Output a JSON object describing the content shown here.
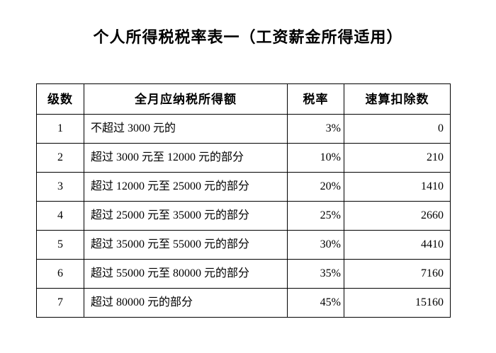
{
  "page": {
    "title": "个人所得税税率表一（工资薪金所得适用）"
  },
  "table": {
    "headers": [
      "级数",
      "全月应纳税所得额",
      "税率",
      "速算扣除数"
    ],
    "rows": [
      [
        "1",
        "不超过 3000 元的",
        "3%",
        "0"
      ],
      [
        "2",
        "超过 3000 元至 12000 元的部分",
        "10%",
        "210"
      ],
      [
        "3",
        "超过 12000 元至 25000 元的部分",
        "20%",
        "1410"
      ],
      [
        "4",
        "超过 25000 元至 35000 元的部分",
        "25%",
        "2660"
      ],
      [
        "5",
        "超过 35000 元至 55000 元的部分",
        "30%",
        "4410"
      ],
      [
        "6",
        "超过 55000 元至 80000 元的部分",
        "35%",
        "7160"
      ],
      [
        "7",
        "超过 80000 元的部分",
        "45%",
        "15160"
      ]
    ]
  },
  "chart_data": {
    "type": "table",
    "title": "个人所得税税率表一（工资薪金所得适用）",
    "columns": [
      "级数",
      "全月应纳税所得额",
      "税率",
      "速算扣除数"
    ],
    "rows": [
      {
        "级数": 1,
        "全月应纳税所得额": "不超过 3000 元的",
        "税率": "3%",
        "速算扣除数": 0
      },
      {
        "级数": 2,
        "全月应纳税所得额": "超过 3000 元至 12000 元的部分",
        "税率": "10%",
        "速算扣除数": 210
      },
      {
        "级数": 3,
        "全月应纳税所得额": "超过 12000 元至 25000 元的部分",
        "税率": "20%",
        "速算扣除数": 1410
      },
      {
        "级数": 4,
        "全月应纳税所得额": "超过 25000 元至 35000 元的部分",
        "税率": "25%",
        "速算扣除数": 2660
      },
      {
        "级数": 5,
        "全月应纳税所得额": "超过 35000 元至 55000 元的部分",
        "税率": "30%",
        "速算扣除数": 4410
      },
      {
        "级数": 6,
        "全月应纳税所得额": "超过 55000 元至 80000 元的部分",
        "税率": "35%",
        "速算扣除数": 7160
      },
      {
        "级数": 7,
        "全月应纳税所得额": "超过 80000 元的部分",
        "税率": "45%",
        "速算扣除数": 15160
      }
    ]
  }
}
